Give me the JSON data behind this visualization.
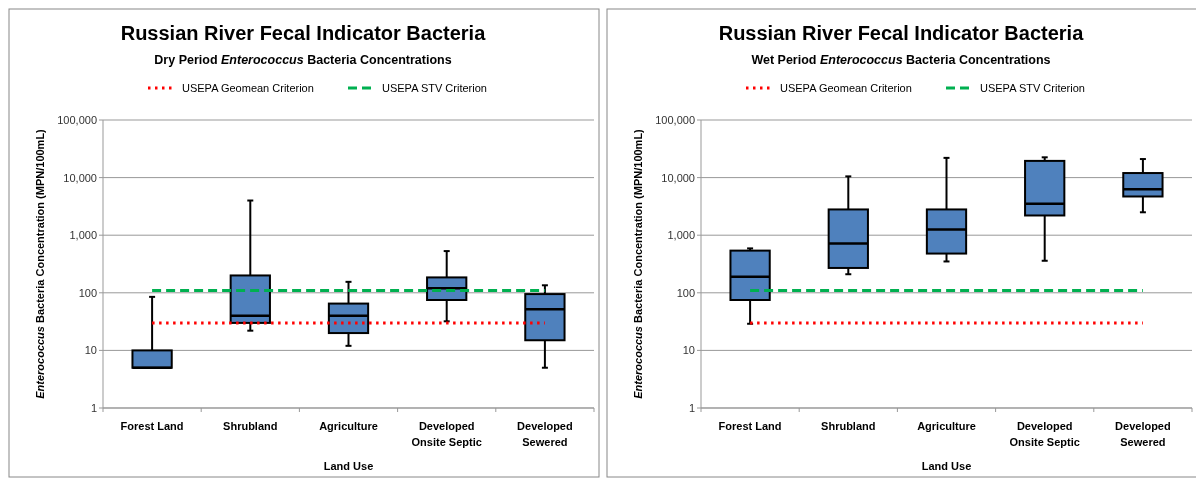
{
  "chart_data": [
    {
      "type": "box",
      "title": "Russian River Fecal Indicator Bacteria",
      "subtitle": "Dry Period Enterococcus Bacteria Concentrations",
      "xlabel": "Land Use",
      "ylabel": "Enterococcus Bacteria Concentration (MPN/100mL)",
      "categories": [
        "Forest Land",
        "Shrubland",
        "Agriculture",
        "Developed\nOnsite Septic",
        "Developed\nSewered"
      ],
      "color": "#4f81bd",
      "boxes": [
        {
          "low": 5,
          "q1": 5,
          "median": 5,
          "q3": 10,
          "high": 85
        },
        {
          "low": 22,
          "q1": 30,
          "median": 40,
          "q3": 200,
          "high": 4000
        },
        {
          "low": 12,
          "q1": 20,
          "median": 40,
          "q3": 65,
          "high": 155
        },
        {
          "low": 32,
          "q1": 75,
          "median": 120,
          "q3": 185,
          "high": 530
        },
        {
          "low": 5,
          "q1": 15,
          "median": 52,
          "q3": 95,
          "high": 135
        }
      ],
      "log": true,
      "ylim": [
        1,
        100000
      ],
      "yticks": [
        1,
        10,
        100,
        {
          "value": 1000,
          "label": "1,000"
        },
        {
          "value": 10000,
          "label": "10,000"
        },
        {
          "value": 100000,
          "label": "100,000"
        }
      ],
      "grid": "y",
      "legend": "top",
      "ref_lines": [
        {
          "axis": "y",
          "value": 30,
          "label": "USEPA Geomean Criterion",
          "color": "#ff0000",
          "line_style": "dotted"
        },
        {
          "axis": "y",
          "value": 110,
          "label": "USEPA STV Criterion",
          "color": "#00b050",
          "line_style": "dashed"
        }
      ]
    },
    {
      "type": "box",
      "title": "Russian River Fecal Indicator Bacteria",
      "subtitle": "Wet Period Enterococcus Bacteria Concentrations",
      "xlabel": "Land Use",
      "ylabel": "Enterococcus Bacteria Concentration (MPN/100mL)",
      "categories": [
        "Forest Land",
        "Shrubland",
        "Agriculture",
        "Developed\nOnsite Septic",
        "Developed\nSewered"
      ],
      "color": "#4f81bd",
      "boxes": [
        {
          "low": 29,
          "q1": 75,
          "median": 190,
          "q3": 540,
          "high": 590
        },
        {
          "low": 210,
          "q1": 270,
          "median": 720,
          "q3": 2800,
          "high": 10500
        },
        {
          "low": 350,
          "q1": 480,
          "median": 1250,
          "q3": 2800,
          "high": 22000
        },
        {
          "low": 360,
          "q1": 2200,
          "median": 3500,
          "q3": 19500,
          "high": 22500
        },
        {
          "low": 2500,
          "q1": 4700,
          "median": 6300,
          "q3": 12000,
          "high": 21000
        }
      ],
      "log": true,
      "ylim": [
        1,
        100000
      ],
      "yticks": [
        1,
        10,
        100,
        {
          "value": 1000,
          "label": "1,000"
        },
        {
          "value": 10000,
          "label": "10,000"
        },
        {
          "value": 100000,
          "label": "100,000"
        }
      ],
      "grid": "y",
      "legend": "top",
      "ref_lines": [
        {
          "axis": "y",
          "value": 30,
          "label": "USEPA Geomean Criterion",
          "color": "#ff0000",
          "line_style": "dotted"
        },
        {
          "axis": "y",
          "value": 110,
          "label": "USEPA STV Criterion",
          "color": "#00b050",
          "line_style": "dashed"
        }
      ]
    }
  ]
}
